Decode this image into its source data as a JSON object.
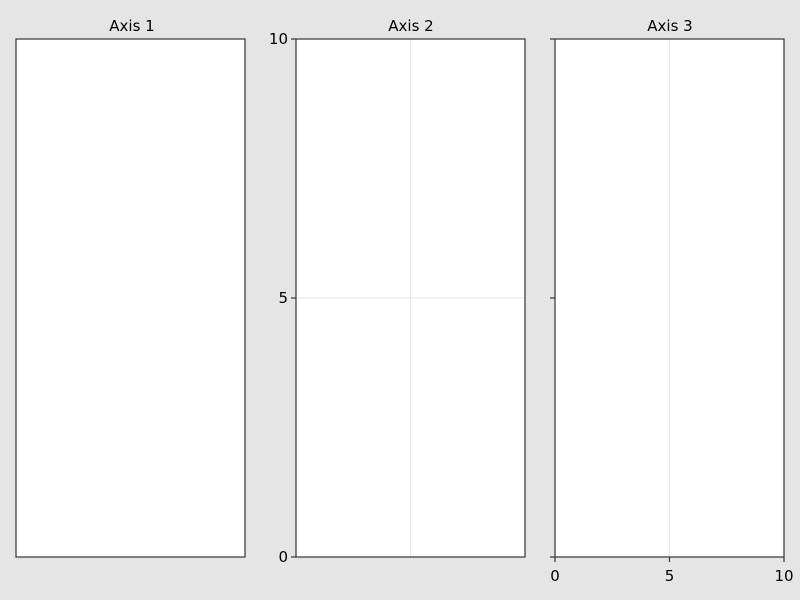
{
  "chart_data": [
    {
      "type": "line",
      "title": "Axis 1",
      "xlim": [
        0,
        10
      ],
      "ylim": [
        0,
        10
      ],
      "xticks": [],
      "yticks": [],
      "grid_x": [],
      "grid_y": [],
      "series": []
    },
    {
      "type": "line",
      "title": "Axis 2",
      "xlim": [
        0,
        10
      ],
      "ylim": [
        0,
        10
      ],
      "xticks": [],
      "yticks": [
        "0",
        "5",
        "10"
      ],
      "grid_x": [
        5
      ],
      "grid_y": [
        5
      ],
      "series": []
    },
    {
      "type": "line",
      "title": "Axis 3",
      "xlim": [
        0,
        10
      ],
      "ylim": [
        0,
        10
      ],
      "xticks": [
        "0",
        "5",
        "10"
      ],
      "yticks_unlabeled": [
        0,
        5,
        10
      ],
      "grid_x": [
        5
      ],
      "grid_y": [],
      "series": []
    }
  ],
  "colors": {
    "figure_background": "#e5e5e5",
    "axes_background": "#ffffff",
    "spine": "#333333",
    "grid": "#e6e6e6"
  }
}
